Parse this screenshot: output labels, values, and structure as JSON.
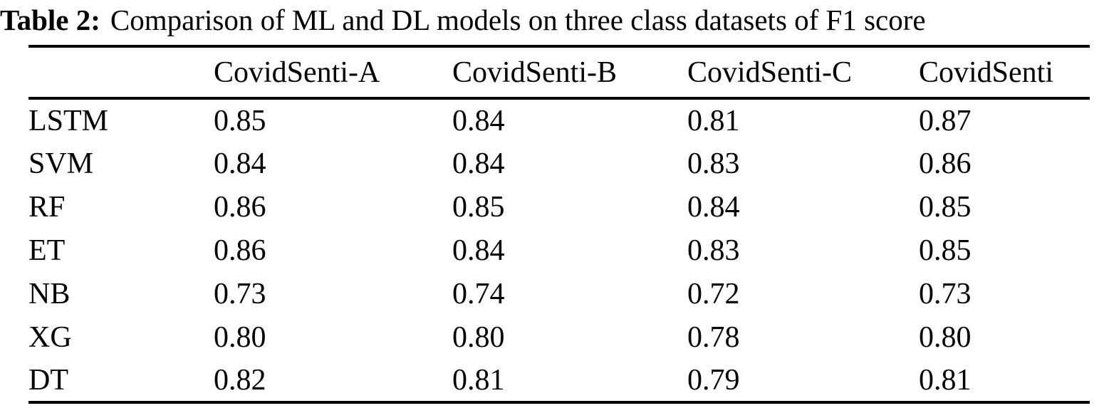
{
  "caption": {
    "label": "Table 2:",
    "text": "Comparison of ML and DL models on three class datasets of F1 score"
  },
  "table": {
    "columns": [
      "CovidSenti-A",
      "CovidSenti-B",
      "CovidSenti-C",
      "CovidSenti"
    ],
    "rows": [
      {
        "model": "LSTM",
        "values": [
          "0.85",
          "0.84",
          "0.81",
          "0.87"
        ]
      },
      {
        "model": "SVM",
        "values": [
          "0.84",
          "0.84",
          "0.83",
          "0.86"
        ]
      },
      {
        "model": "RF",
        "values": [
          "0.86",
          "0.85",
          "0.84",
          "0.85"
        ]
      },
      {
        "model": "ET",
        "values": [
          "0.86",
          "0.84",
          "0.83",
          "0.85"
        ]
      },
      {
        "model": "NB",
        "values": [
          "0.73",
          "0.74",
          "0.72",
          "0.73"
        ]
      },
      {
        "model": "XG",
        "values": [
          "0.80",
          "0.80",
          "0.78",
          "0.80"
        ]
      },
      {
        "model": "DT",
        "values": [
          "0.82",
          "0.81",
          "0.79",
          "0.81"
        ]
      }
    ]
  },
  "colors": {
    "text": "#000000",
    "background": "#ffffff",
    "rule": "#000000"
  }
}
